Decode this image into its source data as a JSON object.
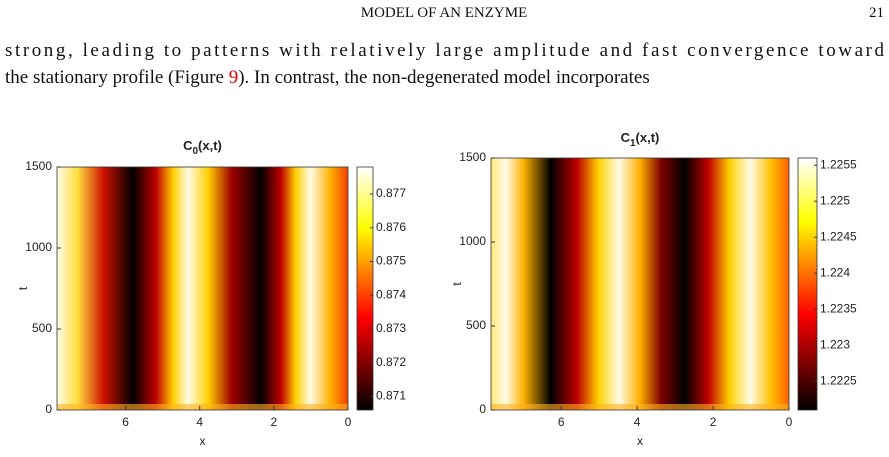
{
  "header": {
    "title": "MODEL OF AN ENZYME",
    "page": "21"
  },
  "body": {
    "line1": "strong, leading to patterns with relatively large amplitude and fast convergence toward",
    "line2a": "the stationary profile (Figure ",
    "line2link": "9",
    "line2b": ").   In contrast, the non-degenerated model incorporates"
  },
  "figures": [
    {
      "title": "C",
      "subscript": "0",
      "title_rest": "(x,t)",
      "xlabel": "x",
      "ylabel": "t",
      "xlim": [
        7.85,
        0
      ],
      "xticks": [
        6,
        4,
        2,
        0
      ],
      "ylim": [
        0,
        1500
      ],
      "yticks": [
        0,
        500,
        1000,
        1500
      ],
      "clim": [
        0.8706,
        0.8778
      ],
      "cticks": [
        0.871,
        0.872,
        0.873,
        0.874,
        0.875,
        0.876,
        0.877
      ]
    },
    {
      "title": "C",
      "subscript": "1",
      "title_rest": "(x,t)",
      "xlabel": "x",
      "ylabel": "t",
      "xlim": [
        7.85,
        0
      ],
      "xticks": [
        6,
        4,
        2,
        0
      ],
      "ylim": [
        0,
        1500
      ],
      "yticks": [
        0,
        500,
        1000,
        1500
      ],
      "clim": [
        1.2221,
        1.2256
      ],
      "cticks": [
        1.2225,
        1.223,
        1.2235,
        1.224,
        1.2245,
        1.225,
        1.2255
      ]
    }
  ]
}
